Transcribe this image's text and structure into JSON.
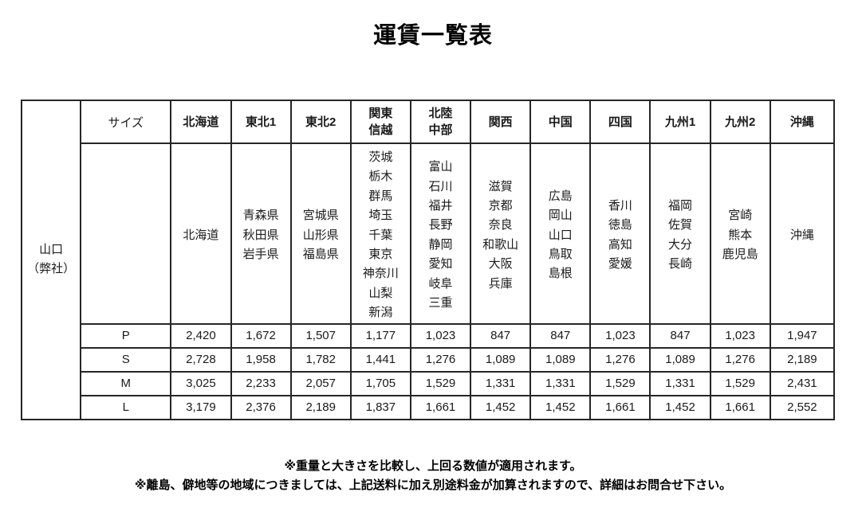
{
  "page": {
    "title": "運賃一覧表"
  },
  "table": {
    "origin_label_lines": [
      "山口",
      "（弊社）"
    ],
    "size_header": "サイズ",
    "columns": [
      {
        "label": "北海道",
        "label_lines": [
          "北海道"
        ],
        "highlight": true,
        "prefectures": [
          "北海道"
        ]
      },
      {
        "label": "東北1",
        "label_lines": [
          "東北1"
        ],
        "highlight": false,
        "prefectures": [
          "青森県",
          "秋田県",
          "岩手県"
        ]
      },
      {
        "label": "東北2",
        "label_lines": [
          "東北2"
        ],
        "highlight": true,
        "prefectures": [
          "宮城県",
          "山形県",
          "福島県"
        ]
      },
      {
        "label": "関東信越",
        "label_lines": [
          "関東",
          "信越"
        ],
        "highlight": false,
        "prefectures": [
          "茨城",
          "栃木",
          "群馬",
          "埼玉",
          "千葉",
          "東京",
          "神奈川",
          "山梨",
          "新潟"
        ]
      },
      {
        "label": "北陸中部",
        "label_lines": [
          "北陸",
          "中部"
        ],
        "highlight": true,
        "prefectures": [
          "富山",
          "石川",
          "福井",
          "長野",
          "静岡",
          "愛知",
          "岐阜",
          "三重"
        ]
      },
      {
        "label": "関西",
        "label_lines": [
          "関西"
        ],
        "highlight": false,
        "prefectures": [
          "滋賀",
          "京都",
          "奈良",
          "和歌山",
          "大阪",
          "兵庫"
        ]
      },
      {
        "label": "中国",
        "label_lines": [
          "中国"
        ],
        "highlight": true,
        "prefectures": [
          "広島",
          "岡山",
          "山口",
          "鳥取",
          "島根"
        ]
      },
      {
        "label": "四国",
        "label_lines": [
          "四国"
        ],
        "highlight": false,
        "prefectures": [
          "香川",
          "徳島",
          "高知",
          "愛媛"
        ]
      },
      {
        "label": "九州1",
        "label_lines": [
          "九州1"
        ],
        "highlight": true,
        "prefectures": [
          "福岡",
          "佐賀",
          "大分",
          "長崎"
        ]
      },
      {
        "label": "九州2",
        "label_lines": [
          "九州2"
        ],
        "highlight": false,
        "prefectures": [
          "宮崎",
          "熊本",
          "鹿児島"
        ]
      },
      {
        "label": "沖縄",
        "label_lines": [
          "沖縄"
        ],
        "highlight": true,
        "prefectures": [
          "沖縄"
        ]
      }
    ],
    "size_rows": [
      {
        "size": "P",
        "values": [
          "2,420",
          "1,672",
          "1,507",
          "1,177",
          "1,023",
          "847",
          "847",
          "1,023",
          "847",
          "1,023",
          "1,947"
        ]
      },
      {
        "size": "S",
        "values": [
          "2,728",
          "1,958",
          "1,782",
          "1,441",
          "1,276",
          "1,089",
          "1,089",
          "1,276",
          "1,089",
          "1,276",
          "2,189"
        ]
      },
      {
        "size": "M",
        "values": [
          "3,025",
          "2,233",
          "2,057",
          "1,705",
          "1,529",
          "1,331",
          "1,331",
          "1,529",
          "1,331",
          "1,529",
          "2,431"
        ]
      },
      {
        "size": "L",
        "values": [
          "3,179",
          "2,376",
          "2,189",
          "1,837",
          "1,661",
          "1,452",
          "1,452",
          "1,661",
          "1,452",
          "1,661",
          "2,552"
        ]
      }
    ]
  },
  "notes": [
    "※重量と大きさを比較し、上回る数値が適用されます。",
    "※離島、僻地等の地域につきましては、上記送料に加え別途料金が加算されますので、詳細はお問合せ下さい。"
  ],
  "colors": {
    "highlight_bg": "#ffffcc",
    "origin_bg": "#cef94b",
    "border": "#262626",
    "background": "#ffffff",
    "text": "#000000"
  }
}
